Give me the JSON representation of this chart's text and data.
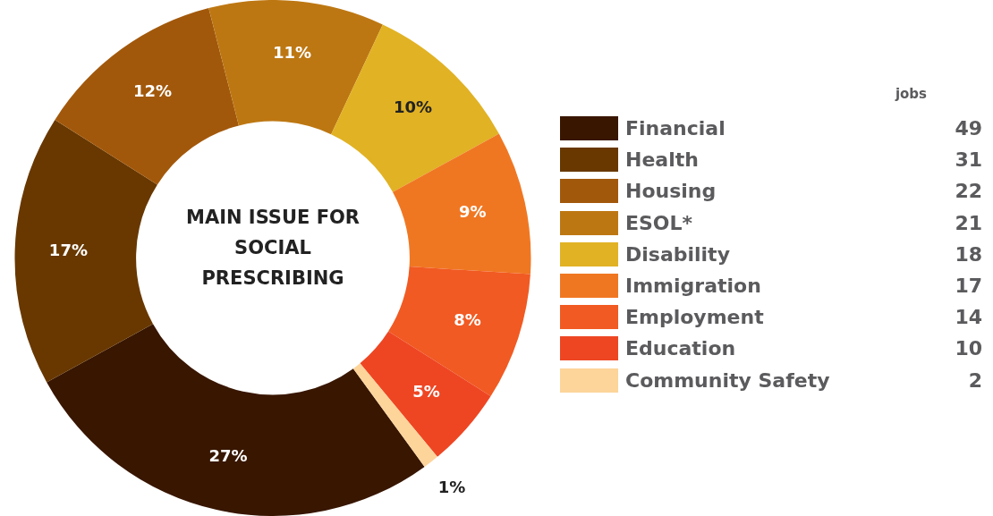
{
  "chart_data": {
    "type": "donut",
    "title": "MAIN ISSUE FOR SOCIAL PRESCRIBING",
    "legend_title": "jobs",
    "legend": "right",
    "categories": [
      "Financial",
      "Health",
      "Housing",
      "ESOL*",
      "Disability",
      "Immigration",
      "Employment",
      "Education",
      "Community Safety"
    ],
    "values": [
      27,
      17,
      12,
      11,
      10,
      9,
      8,
      5,
      1
    ],
    "annotations": [
      "49",
      "31",
      "22",
      "21",
      "18",
      "17",
      "14",
      "10",
      "2"
    ],
    "value_labels": [
      "27%",
      "17%",
      "12%",
      "11%",
      "10%",
      "9%",
      "8%",
      "5%",
      "1%"
    ],
    "colors": [
      "#381600",
      "#683800",
      "#a2580b",
      "#bd7712",
      "#e1b224",
      "#f07722",
      "#f15a22",
      "#ee4623",
      "#fdd49a"
    ]
  }
}
